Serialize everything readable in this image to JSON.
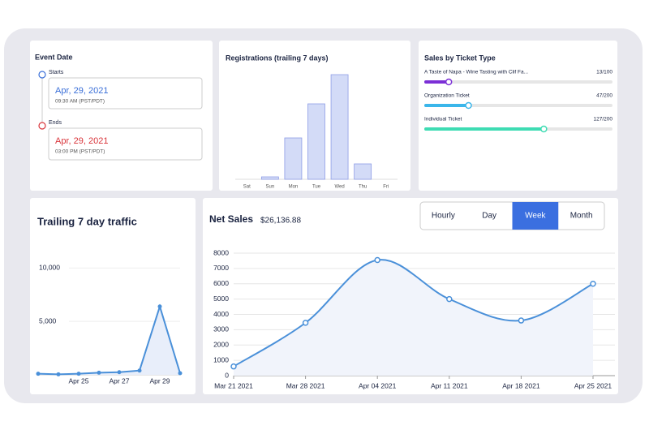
{
  "event_date": {
    "title": "Event Date",
    "starts": {
      "label": "Starts",
      "date": "Apr, 29, 2021",
      "time": "09:30 AM (PST/PDT)"
    },
    "ends": {
      "label": "Ends",
      "date": "Apr, 29, 2021",
      "time": "03:00 PM (PST/PDT)"
    }
  },
  "chart_data": [
    {
      "type": "bar",
      "title": "Registrations (trailing 7 days)",
      "categories": [
        "Sat",
        "Sun",
        "Mon",
        "Tue",
        "Wed",
        "Thu",
        "Fri"
      ],
      "values": [
        0,
        3,
        51,
        93,
        129,
        19,
        0
      ],
      "ylim": [
        0,
        135
      ],
      "color": "#d3dbf7"
    },
    {
      "type": "progress",
      "title": "Sales by Ticket Type",
      "categories": [
        "A Taste of Napa - Wine Tasting with Clif Fa...",
        "Organization Ticket",
        "Individual Ticket"
      ],
      "values": [
        13,
        47,
        127
      ],
      "totals": [
        100,
        200,
        200
      ],
      "value_labels": [
        "13/100",
        "47/200",
        "127/200"
      ],
      "colors": [
        "#7b2fd6",
        "#3bb6ea",
        "#3edcb3"
      ]
    },
    {
      "type": "area",
      "title": "Trailing 7 day traffic",
      "categories": [
        null,
        null,
        "Apr 25",
        null,
        "Apr 27",
        null,
        "Apr 29",
        null
      ],
      "values": [
        100,
        50,
        100,
        200,
        250,
        400,
        6400,
        150
      ],
      "ylim": [
        0,
        12000
      ],
      "yticks": [
        {
          "value": 5000,
          "label": "5,000"
        },
        {
          "value": 10000,
          "label": "10,000"
        }
      ],
      "color": "#4a90d9",
      "grid": true
    },
    {
      "type": "line",
      "title": "Net Sales",
      "subtitle": "$26,136.88",
      "categories": [
        "Mar 21 2021",
        "Mar 28 2021",
        "Apr 04 2021",
        "Apr 11 2021",
        "Apr 18 2021",
        "Apr 25 2021"
      ],
      "values": [
        600,
        3450,
        7550,
        5000,
        3600,
        6000
      ],
      "ylim": [
        0,
        8000
      ],
      "yticks": [
        0,
        1000,
        2000,
        3000,
        4000,
        5000,
        6000,
        7000,
        8000
      ],
      "color": "#4a90d9",
      "smooth": true,
      "grid": true
    }
  ],
  "net_sales_controls": {
    "options": [
      "Hourly",
      "Day",
      "Week",
      "Month"
    ],
    "selected": 2
  }
}
